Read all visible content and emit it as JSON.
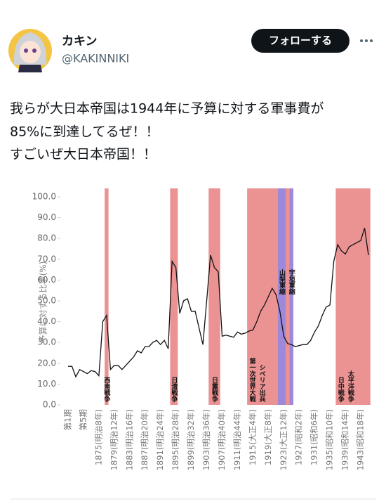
{
  "user": {
    "name": "カキン",
    "handle": "@KAKINNIKI",
    "follow": "フォローする"
  },
  "tweet": {
    "lines": [
      "我らが大日本帝国は1944年に予算に対する軍事費が",
      "85%に到達してるぜ！！",
      "すごいぜ大日本帝国！！"
    ]
  },
  "chart_data": {
    "type": "line",
    "y_label": "予算に対する比率(%)",
    "categories": [
      "第1期",
      null,
      null,
      null,
      "第5期",
      null,
      null,
      null,
      "1875(明治8年)",
      null,
      null,
      null,
      "1879(明治12年)",
      null,
      null,
      null,
      "1883(明治16年)",
      null,
      null,
      null,
      "1887(明治20年)",
      null,
      null,
      null,
      "1891(明治24年)",
      null,
      null,
      null,
      "1895(明治28年)",
      null,
      null,
      null,
      "1899(明治32年)",
      null,
      null,
      null,
      "1903(明治36年)",
      null,
      null,
      null,
      "1907(明治40年)",
      null,
      null,
      null,
      "1911(明治44年)",
      null,
      null,
      null,
      "1915(大正4年)",
      null,
      null,
      null,
      "1919(大正8年)",
      null,
      null,
      null,
      "1923(大正12年)",
      null,
      null,
      null,
      "1927(昭和2年)",
      null,
      null,
      null,
      "1931(昭和6年)",
      null,
      null,
      null,
      "1935(昭和10年)",
      null,
      null,
      null,
      "1939(昭和14年)",
      null,
      null,
      null,
      "1943(昭和18年)",
      null,
      null
    ],
    "values": [
      18.5,
      18.5,
      13.5,
      17,
      16,
      15,
      16.5,
      16,
      14,
      40,
      43,
      17,
      19,
      19,
      17,
      19,
      21,
      23,
      26,
      25,
      28,
      28,
      30,
      31,
      29,
      31,
      27,
      69,
      66,
      44,
      50,
      51,
      45,
      45,
      37,
      29,
      50,
      72,
      66,
      64,
      33,
      33.5,
      33,
      32.5,
      35,
      34,
      34.5,
      35.5,
      36,
      40,
      45,
      48,
      52,
      56,
      53,
      45,
      33,
      29.5,
      29,
      28,
      28.5,
      29,
      29,
      31,
      35,
      38,
      43,
      47,
      48,
      69,
      77,
      74,
      72.5,
      76,
      77,
      78,
      79,
      85,
      72
    ],
    "color": "#111111",
    "ylim": [
      0,
      100
    ],
    "yticks": [
      {
        "value": 0,
        "label": "0.0"
      },
      {
        "value": 10,
        "label": "10.0"
      },
      {
        "value": 20,
        "label": "20.0"
      },
      {
        "value": 30,
        "label": "30.0"
      },
      {
        "value": 40,
        "label": "40.0"
      },
      {
        "value": 50,
        "label": "50.0"
      },
      {
        "value": 60,
        "label": "60.0"
      },
      {
        "value": 70,
        "label": "70.0"
      },
      {
        "value": 80,
        "label": "80.0"
      },
      {
        "value": 90,
        "label": "90.0"
      },
      {
        "value": 100,
        "label": "100.0"
      }
    ],
    "bands": [
      {
        "start": 1877,
        "end": 1877,
        "color": "#e77f80",
        "labels": [
          {
            "text": "西南戦争",
            "pos": "bottom"
          }
        ]
      },
      {
        "start": 1894,
        "end": 1895,
        "color": "#e77f80",
        "labels": [
          {
            "text": "日清戦争",
            "pos": "bottom"
          }
        ]
      },
      {
        "start": 1904,
        "end": 1906,
        "color": "#e77f80",
        "labels": [
          {
            "text": "日露戦争",
            "pos": "bottom"
          }
        ]
      },
      {
        "start": 1914,
        "end": 1925,
        "color": "#e77f80",
        "labels": [
          {
            "text": "第一次世界大戦",
            "pos": "bottom"
          },
          {
            "text": "シベリア出兵",
            "pos": "bottom"
          }
        ]
      },
      {
        "start": 1922,
        "end": 1923,
        "color": "#8f86e8",
        "labels": [
          {
            "text": "山梨軍縮",
            "pos": "top"
          }
        ]
      },
      {
        "start": 1925,
        "end": 1925,
        "color": "#8f86e8",
        "labels": [
          {
            "text": "宇垣軍縮",
            "pos": "top"
          }
        ]
      },
      {
        "start": 1937,
        "end": 1945,
        "color": "#e77f80",
        "labels": [
          {
            "text": "日中戦争",
            "pos": "bottom"
          },
          {
            "text": "太平洋戦争",
            "pos": "bottom"
          }
        ]
      }
    ]
  }
}
